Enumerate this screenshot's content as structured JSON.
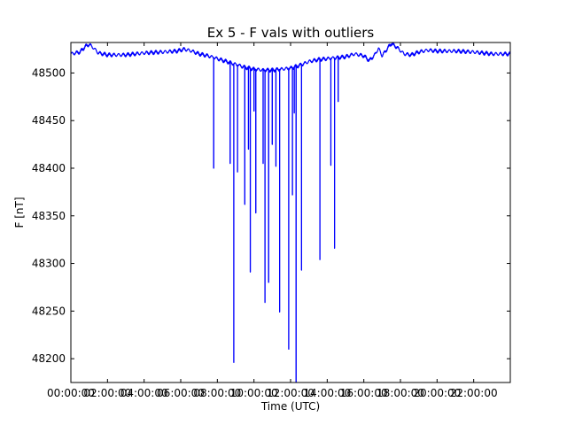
{
  "chart_data": {
    "type": "line",
    "title": "Ex 5 - F vals with outliers",
    "xlabel": "Time (UTC)",
    "ylabel": "F [nT]",
    "x_unit": "hours (UTC)",
    "xlim": [
      0,
      24
    ],
    "ylim": [
      48175,
      48532
    ],
    "grid": false,
    "legend": "none",
    "x_ticks": [
      {
        "value": 0,
        "label": "00:00:00"
      },
      {
        "value": 2,
        "label": "02:00:00"
      },
      {
        "value": 4,
        "label": "04:00:00"
      },
      {
        "value": 6,
        "label": "06:00:00"
      },
      {
        "value": 8,
        "label": "08:00:00"
      },
      {
        "value": 10,
        "label": "10:00:00"
      },
      {
        "value": 12,
        "label": "12:00:00"
      },
      {
        "value": 14,
        "label": "14:00:00"
      },
      {
        "value": 16,
        "label": "16:00:00"
      },
      {
        "value": 18,
        "label": "18:00:00"
      },
      {
        "value": 20,
        "label": "20:00:00"
      },
      {
        "value": 22,
        "label": "22:00:00"
      }
    ],
    "y_ticks": [
      {
        "value": 48200,
        "label": "48200"
      },
      {
        "value": 48250,
        "label": "48250"
      },
      {
        "value": 48300,
        "label": "48300"
      },
      {
        "value": 48350,
        "label": "48350"
      },
      {
        "value": 48400,
        "label": "48400"
      },
      {
        "value": 48450,
        "label": "48450"
      },
      {
        "value": 48500,
        "label": "48500"
      }
    ],
    "series": [
      {
        "color": "#0000ff",
        "baseline": [
          [
            0.0,
            48520
          ],
          [
            0.5,
            48522
          ],
          [
            0.8,
            48528
          ],
          [
            1.0,
            48530
          ],
          [
            1.2,
            48527
          ],
          [
            1.5,
            48521
          ],
          [
            2.0,
            48519
          ],
          [
            3.0,
            48519
          ],
          [
            4.0,
            48521
          ],
          [
            5.0,
            48522
          ],
          [
            5.8,
            48523
          ],
          [
            6.2,
            48525
          ],
          [
            6.6,
            48523
          ],
          [
            7.0,
            48520
          ],
          [
            7.5,
            48518
          ],
          [
            8.0,
            48515
          ],
          [
            8.5,
            48512
          ],
          [
            9.0,
            48509
          ],
          [
            9.5,
            48506
          ],
          [
            10.0,
            48504
          ],
          [
            10.5,
            48503
          ],
          [
            11.0,
            48503
          ],
          [
            11.5,
            48504
          ],
          [
            12.0,
            48505
          ],
          [
            12.5,
            48508
          ],
          [
            13.0,
            48512
          ],
          [
            13.5,
            48514
          ],
          [
            14.0,
            48515
          ],
          [
            14.5,
            48516
          ],
          [
            15.0,
            48517
          ],
          [
            15.5,
            48520
          ],
          [
            16.0,
            48518
          ],
          [
            16.3,
            48513
          ],
          [
            16.6,
            48519
          ],
          [
            16.8,
            48526
          ],
          [
            17.0,
            48518
          ],
          [
            17.3,
            48526
          ],
          [
            17.5,
            48531
          ],
          [
            17.8,
            48527
          ],
          [
            18.2,
            48520
          ],
          [
            18.6,
            48519
          ],
          [
            19.0,
            48522
          ],
          [
            19.5,
            48524
          ],
          [
            20.0,
            48523
          ],
          [
            21.0,
            48523
          ],
          [
            22.0,
            48522
          ],
          [
            23.0,
            48520
          ],
          [
            24.0,
            48520
          ]
        ],
        "spikes": [
          [
            7.8,
            48400
          ],
          [
            8.7,
            48405
          ],
          [
            8.9,
            48196
          ],
          [
            9.1,
            48396
          ],
          [
            9.5,
            48362
          ],
          [
            9.7,
            48420
          ],
          [
            9.8,
            48291
          ],
          [
            10.0,
            48460
          ],
          [
            10.1,
            48353
          ],
          [
            10.5,
            48405
          ],
          [
            10.6,
            48259
          ],
          [
            10.8,
            48280
          ],
          [
            11.0,
            48425
          ],
          [
            11.2,
            48402
          ],
          [
            11.4,
            48249
          ],
          [
            11.9,
            48210
          ],
          [
            12.1,
            48372
          ],
          [
            12.2,
            48458
          ],
          [
            12.3,
            48175
          ],
          [
            12.6,
            48293
          ],
          [
            13.6,
            48304
          ],
          [
            14.2,
            48403
          ],
          [
            14.4,
            48316
          ],
          [
            14.6,
            48470
          ]
        ]
      }
    ]
  }
}
